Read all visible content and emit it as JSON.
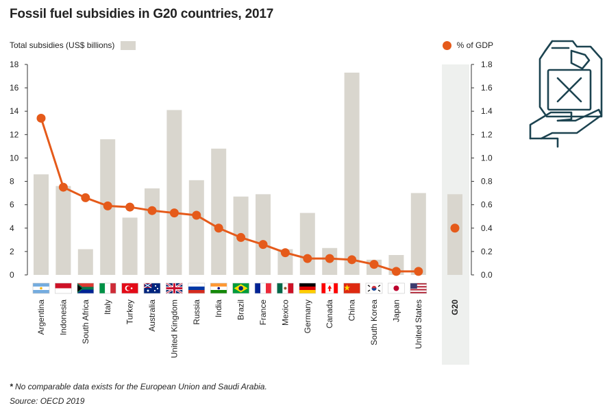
{
  "title": "Fossil fuel subsidies in G20 countries, 2017",
  "legend": {
    "bars_label": "Total subsidies (US$ billions)",
    "line_label": "% of GDP"
  },
  "footnote_bold": "*",
  "footnote_text": " No comparable data exists for the European Union and Saudi Arabia.",
  "source": "Source: OECD 2019",
  "icon": "jerrycan-in-hand-icon",
  "colors": {
    "bar": "#d9d6ce",
    "line": "#e55a1a",
    "g20_band": "#eef0ee",
    "axis": "#333333",
    "icon": "#1c4350"
  },
  "chart_data": {
    "type": "bar",
    "title": "Fossil fuel subsidies in G20 countries, 2017",
    "categories": [
      "Argentina",
      "Indonesia",
      "South Africa",
      "Italy",
      "Turkey",
      "Australia",
      "United Kingdom",
      "Russia",
      "India",
      "Brazil",
      "France",
      "Mexico",
      "Germany",
      "Canada",
      "China",
      "South Korea",
      "Japan",
      "United States"
    ],
    "flags": [
      "argentina-flag",
      "indonesia-flag",
      "south-africa-flag",
      "italy-flag",
      "turkey-flag",
      "australia-flag",
      "uk-flag",
      "russia-flag",
      "india-flag",
      "brazil-flag",
      "france-flag",
      "mexico-flag",
      "germany-flag",
      "canada-flag",
      "china-flag",
      "south-korea-flag",
      "japan-flag",
      "usa-flag"
    ],
    "series": [
      {
        "name": "Total subsidies (US$ billions)",
        "type": "bar",
        "axis": "left",
        "values": [
          8.6,
          7.6,
          2.2,
          11.6,
          4.9,
          7.4,
          14.1,
          8.1,
          10.8,
          6.7,
          6.9,
          2.2,
          5.3,
          2.3,
          17.3,
          1.3,
          1.7,
          7.0
        ]
      },
      {
        "name": "% of GDP",
        "type": "line",
        "axis": "right",
        "values": [
          1.34,
          0.75,
          0.66,
          0.59,
          0.58,
          0.55,
          0.53,
          0.51,
          0.4,
          0.32,
          0.26,
          0.19,
          0.14,
          0.14,
          0.13,
          0.09,
          0.03,
          0.03
        ]
      }
    ],
    "aggregate": {
      "label": "G20",
      "bar_value": 6.9,
      "line_value": 0.4
    },
    "y_left": {
      "min": 0,
      "max": 18,
      "ticks": [
        "0",
        "2",
        "4",
        "6",
        "8",
        "10",
        "12",
        "14",
        "16",
        "18"
      ]
    },
    "y_right": {
      "min": 0,
      "max": 1.8,
      "ticks": [
        "0.0",
        "0.2",
        "0.4",
        "0.6",
        "0.8",
        "1.0",
        "1.2",
        "1.4",
        "1.6",
        "1.8"
      ]
    },
    "grid": false
  }
}
